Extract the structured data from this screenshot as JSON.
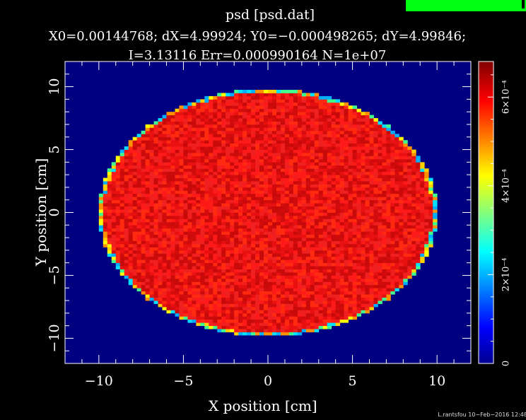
{
  "header": {
    "title": "psd [psd.dat]",
    "stats_line1": "X0=0.00144768; dX=4.99924; Y0=−0.000498265; dY=4.99846;",
    "stats_line2": "I=3.13116 Err=0.000990164 N=1e+07"
  },
  "footer_text": "L.rantsfou 10−Feb−2016 12:48",
  "badge_color": "#00ff10",
  "chart_data": {
    "type": "heatmap",
    "xlabel": "X position [cm]",
    "ylabel": "Y position [cm]",
    "xlim": [
      -12,
      12
    ],
    "ylim": [
      -12,
      12
    ],
    "x_ticks": [
      {
        "value": -10,
        "label": "−10"
      },
      {
        "value": -5,
        "label": "−5"
      },
      {
        "value": 0,
        "label": "0"
      },
      {
        "value": 5,
        "label": "5"
      },
      {
        "value": 10,
        "label": "10"
      }
    ],
    "y_ticks": [
      {
        "value": -10,
        "label": "−10"
      },
      {
        "value": -5,
        "label": "−5"
      },
      {
        "value": 0,
        "label": "0"
      },
      {
        "value": 5,
        "label": "5"
      },
      {
        "value": 10,
        "label": "10"
      }
    ],
    "colorbar": {
      "range": [
        0,
        0.00068
      ],
      "ticks": [
        {
          "value": 0,
          "label": "0"
        },
        {
          "value": 0.0002,
          "label": "2×10⁻⁴"
        },
        {
          "value": 0.0004,
          "label": "4×10⁻⁴"
        },
        {
          "value": 0.0006,
          "label": "6×10⁻⁴"
        }
      ],
      "colormap": [
        "#00008f",
        "#0000ff",
        "#00ffff",
        "#ffff00",
        "#ff0000",
        "#800000"
      ]
    },
    "disk_radius_x": 10,
    "disk_radius_y": 9.8,
    "inside_value": 0.00058,
    "outside_value": 0,
    "grid": false
  }
}
